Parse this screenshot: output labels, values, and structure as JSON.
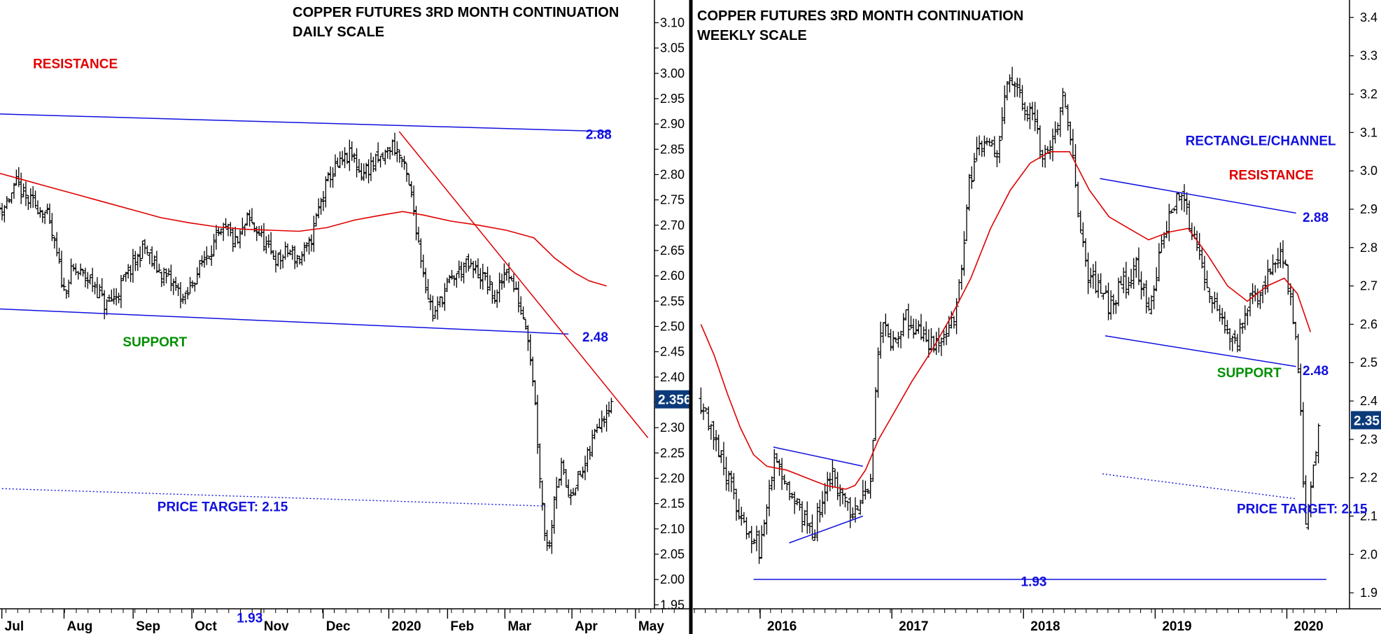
{
  "colors": {
    "bar": "#000000",
    "ma": "#e00000",
    "trendline": "#1010e0",
    "resistance_label": "#e00000",
    "support_label": "#009000",
    "annotation_blue": "#1010e0",
    "current_price_bg": "#0a3a7a",
    "current_price_text": "#ffffff"
  },
  "chart_data": [
    {
      "type": "ohlc",
      "title": "COPPER FUTURES 3RD MONTH CONTINUATION",
      "subtitle": "DAILY SCALE",
      "xlabel": "",
      "ylabel": "",
      "ylim": [
        1.92,
        3.12
      ],
      "y_ticks": [
        "3.10",
        "3.05",
        "3.00",
        "2.95",
        "2.90",
        "2.85",
        "2.80",
        "2.75",
        "2.70",
        "2.65",
        "2.60",
        "2.55",
        "2.50",
        "2.45",
        "2.40",
        "2.35",
        "2.30",
        "2.25",
        "2.20",
        "2.15",
        "2.10",
        "2.05",
        "2.00",
        "1.95"
      ],
      "x_ticks": [
        "Jul",
        "Aug",
        "Sep",
        "Oct",
        "Nov",
        "Dec",
        "2020",
        "Feb",
        "Mar",
        "Apr",
        "May"
      ],
      "current_price": "2.356",
      "close_path": [
        {
          "x": 0.0,
          "y": 2.73
        },
        {
          "x": 0.15,
          "y": 2.74
        },
        {
          "x": 0.32,
          "y": 2.78
        },
        {
          "x": 0.45,
          "y": 2.75
        },
        {
          "x": 0.6,
          "y": 2.74
        },
        {
          "x": 0.75,
          "y": 2.72
        },
        {
          "x": 0.88,
          "y": 2.65
        },
        {
          "x": 1.0,
          "y": 2.57
        },
        {
          "x": 1.12,
          "y": 2.61
        },
        {
          "x": 1.3,
          "y": 2.6
        },
        {
          "x": 1.45,
          "y": 2.58
        },
        {
          "x": 1.6,
          "y": 2.54
        },
        {
          "x": 1.75,
          "y": 2.56
        },
        {
          "x": 1.9,
          "y": 2.6
        },
        {
          "x": 2.05,
          "y": 2.63
        },
        {
          "x": 2.15,
          "y": 2.66
        },
        {
          "x": 2.3,
          "y": 2.62
        },
        {
          "x": 2.45,
          "y": 2.6
        },
        {
          "x": 2.6,
          "y": 2.58
        },
        {
          "x": 2.75,
          "y": 2.55
        },
        {
          "x": 2.9,
          "y": 2.6
        },
        {
          "x": 3.05,
          "y": 2.64
        },
        {
          "x": 3.2,
          "y": 2.67
        },
        {
          "x": 3.35,
          "y": 2.69
        },
        {
          "x": 3.5,
          "y": 2.66
        },
        {
          "x": 3.65,
          "y": 2.71
        },
        {
          "x": 3.8,
          "y": 2.69
        },
        {
          "x": 3.95,
          "y": 2.65
        },
        {
          "x": 4.1,
          "y": 2.63
        },
        {
          "x": 4.25,
          "y": 2.65
        },
        {
          "x": 4.4,
          "y": 2.63
        },
        {
          "x": 4.55,
          "y": 2.66
        },
        {
          "x": 4.7,
          "y": 2.74
        },
        {
          "x": 4.85,
          "y": 2.8
        },
        {
          "x": 5.0,
          "y": 2.82
        },
        {
          "x": 5.15,
          "y": 2.84
        },
        {
          "x": 5.3,
          "y": 2.8
        },
        {
          "x": 5.45,
          "y": 2.82
        },
        {
          "x": 5.6,
          "y": 2.83
        },
        {
          "x": 5.75,
          "y": 2.86
        },
        {
          "x": 5.85,
          "y": 2.84
        },
        {
          "x": 5.95,
          "y": 2.8
        },
        {
          "x": 6.05,
          "y": 2.74
        },
        {
          "x": 6.15,
          "y": 2.65
        },
        {
          "x": 6.25,
          "y": 2.57
        },
        {
          "x": 6.35,
          "y": 2.52
        },
        {
          "x": 6.5,
          "y": 2.57
        },
        {
          "x": 6.65,
          "y": 2.6
        },
        {
          "x": 6.8,
          "y": 2.62
        },
        {
          "x": 6.95,
          "y": 2.61
        },
        {
          "x": 7.1,
          "y": 2.59
        },
        {
          "x": 7.25,
          "y": 2.55
        },
        {
          "x": 7.4,
          "y": 2.62
        },
        {
          "x": 7.55,
          "y": 2.56
        },
        {
          "x": 7.7,
          "y": 2.5
        },
        {
          "x": 7.8,
          "y": 2.38
        },
        {
          "x": 7.88,
          "y": 2.22
        },
        {
          "x": 7.95,
          "y": 2.1
        },
        {
          "x": 8.02,
          "y": 2.06
        },
        {
          "x": 8.1,
          "y": 2.18
        },
        {
          "x": 8.2,
          "y": 2.22
        },
        {
          "x": 8.3,
          "y": 2.17
        },
        {
          "x": 8.4,
          "y": 2.19
        },
        {
          "x": 8.5,
          "y": 2.21
        },
        {
          "x": 8.6,
          "y": 2.25
        },
        {
          "x": 8.72,
          "y": 2.31
        },
        {
          "x": 8.82,
          "y": 2.33
        },
        {
          "x": 8.92,
          "y": 2.356
        }
      ],
      "moving_average": [
        {
          "x": 0.0,
          "y": 2.805
        },
        {
          "x": 0.4,
          "y": 2.79
        },
        {
          "x": 0.8,
          "y": 2.775
        },
        {
          "x": 1.2,
          "y": 2.76
        },
        {
          "x": 1.6,
          "y": 2.745
        },
        {
          "x": 2.0,
          "y": 2.73
        },
        {
          "x": 2.4,
          "y": 2.715
        },
        {
          "x": 2.8,
          "y": 2.705
        },
        {
          "x": 3.2,
          "y": 2.697
        },
        {
          "x": 3.6,
          "y": 2.692
        },
        {
          "x": 4.0,
          "y": 2.69
        },
        {
          "x": 4.4,
          "y": 2.688
        },
        {
          "x": 4.8,
          "y": 2.695
        },
        {
          "x": 5.2,
          "y": 2.71
        },
        {
          "x": 5.6,
          "y": 2.72
        },
        {
          "x": 5.9,
          "y": 2.727
        },
        {
          "x": 6.2,
          "y": 2.72
        },
        {
          "x": 6.6,
          "y": 2.708
        },
        {
          "x": 7.0,
          "y": 2.7
        },
        {
          "x": 7.4,
          "y": 2.69
        },
        {
          "x": 7.8,
          "y": 2.675
        },
        {
          "x": 8.1,
          "y": 2.635
        },
        {
          "x": 8.4,
          "y": 2.605
        },
        {
          "x": 8.6,
          "y": 2.59
        },
        {
          "x": 8.85,
          "y": 2.58
        }
      ],
      "lines": [
        {
          "name": "resistance",
          "style": "solid",
          "color": "trendline",
          "x1": 0.0,
          "y1": 2.92,
          "x2": 8.9,
          "y2": 2.885
        },
        {
          "name": "support",
          "style": "solid",
          "color": "trendline",
          "x1": 0.0,
          "y1": 2.535,
          "x2": 8.3,
          "y2": 2.485
        },
        {
          "name": "target",
          "style": "dotted",
          "color": "trendline",
          "x1": 0.0,
          "y1": 2.18,
          "x2": 8.0,
          "y2": 2.145
        },
        {
          "name": "low",
          "style": "solid",
          "color": "trendline",
          "x1": 0.0,
          "y1": 1.93,
          "x2": 9.6,
          "y2": 1.93
        },
        {
          "name": "downtrend",
          "style": "solid",
          "color": "ma",
          "x1": 5.85,
          "y1": 2.885,
          "x2": 9.45,
          "y2": 2.28
        }
      ],
      "annotations": [
        {
          "text": "RESISTANCE",
          "color": "resistance_label",
          "x": 0.55,
          "y": 3.02
        },
        {
          "text": "SUPPORT",
          "color": "support_label",
          "x": 1.85,
          "y": 2.47
        },
        {
          "text": "PRICE TARGET: 2.15",
          "color": "annotation_blue",
          "x": 2.35,
          "y": 2.145
        },
        {
          "text": "2.88",
          "color": "annotation_blue",
          "x": 8.55,
          "y": 2.88
        },
        {
          "text": "2.48",
          "color": "annotation_blue",
          "x": 8.5,
          "y": 2.48
        },
        {
          "text": "1.93",
          "color": "annotation_blue",
          "x": 3.5,
          "y": 1.925
        }
      ]
    },
    {
      "type": "ohlc",
      "title": "COPPER FUTURES 3RD MONTH CONTINUATION",
      "subtitle": "WEEKLY SCALE",
      "xlabel": "",
      "ylabel": "",
      "ylim": [
        1.82,
        3.46
      ],
      "y_ticks": [
        "3.4",
        "3.3",
        "3.2",
        "3.1",
        "3.0",
        "2.9",
        "2.8",
        "2.7",
        "2.6",
        "2.5",
        "2.4",
        "2.3",
        "2.2",
        "2.1",
        "2.0",
        "1.9"
      ],
      "x_ticks": [
        "2016",
        "2017",
        "2018",
        "2019",
        "2020"
      ],
      "current_price": "2.35",
      "close_path": [
        {
          "x": 2015.55,
          "y": 2.4
        },
        {
          "x": 2015.65,
          "y": 2.32
        },
        {
          "x": 2015.75,
          "y": 2.2
        },
        {
          "x": 2015.85,
          "y": 2.1
        },
        {
          "x": 2015.95,
          "y": 2.05
        },
        {
          "x": 2016.0,
          "y": 2.0
        },
        {
          "x": 2016.06,
          "y": 2.15
        },
        {
          "x": 2016.1,
          "y": 2.25
        },
        {
          "x": 2016.18,
          "y": 2.2
        },
        {
          "x": 2016.25,
          "y": 2.15
        },
        {
          "x": 2016.32,
          "y": 2.1
        },
        {
          "x": 2016.4,
          "y": 2.05
        },
        {
          "x": 2016.48,
          "y": 2.15
        },
        {
          "x": 2016.55,
          "y": 2.2
        },
        {
          "x": 2016.62,
          "y": 2.15
        },
        {
          "x": 2016.7,
          "y": 2.1
        },
        {
          "x": 2016.78,
          "y": 2.15
        },
        {
          "x": 2016.84,
          "y": 2.2
        },
        {
          "x": 2016.88,
          "y": 2.45
        },
        {
          "x": 2016.92,
          "y": 2.62
        },
        {
          "x": 2017.0,
          "y": 2.55
        },
        {
          "x": 2017.1,
          "y": 2.62
        },
        {
          "x": 2017.2,
          "y": 2.58
        },
        {
          "x": 2017.3,
          "y": 2.55
        },
        {
          "x": 2017.4,
          "y": 2.55
        },
        {
          "x": 2017.5,
          "y": 2.65
        },
        {
          "x": 2017.58,
          "y": 2.95
        },
        {
          "x": 2017.65,
          "y": 3.05
        },
        {
          "x": 2017.72,
          "y": 3.1
        },
        {
          "x": 2017.8,
          "y": 3.05
        },
        {
          "x": 2017.88,
          "y": 3.25
        },
        {
          "x": 2017.95,
          "y": 3.2
        },
        {
          "x": 2018.05,
          "y": 3.15
        },
        {
          "x": 2018.15,
          "y": 3.05
        },
        {
          "x": 2018.22,
          "y": 3.08
        },
        {
          "x": 2018.3,
          "y": 3.2
        },
        {
          "x": 2018.4,
          "y": 2.95
        },
        {
          "x": 2018.48,
          "y": 2.72
        },
        {
          "x": 2018.55,
          "y": 2.7
        },
        {
          "x": 2018.65,
          "y": 2.65
        },
        {
          "x": 2018.75,
          "y": 2.7
        },
        {
          "x": 2018.85,
          "y": 2.75
        },
        {
          "x": 2018.95,
          "y": 2.65
        },
        {
          "x": 2019.05,
          "y": 2.8
        },
        {
          "x": 2019.12,
          "y": 2.9
        },
        {
          "x": 2019.2,
          "y": 2.93
        },
        {
          "x": 2019.28,
          "y": 2.85
        },
        {
          "x": 2019.35,
          "y": 2.75
        },
        {
          "x": 2019.45,
          "y": 2.65
        },
        {
          "x": 2019.55,
          "y": 2.58
        },
        {
          "x": 2019.62,
          "y": 2.55
        },
        {
          "x": 2019.7,
          "y": 2.65
        },
        {
          "x": 2019.8,
          "y": 2.68
        },
        {
          "x": 2019.88,
          "y": 2.75
        },
        {
          "x": 2019.95,
          "y": 2.8
        },
        {
          "x": 2020.0,
          "y": 2.72
        },
        {
          "x": 2020.05,
          "y": 2.6
        },
        {
          "x": 2020.1,
          "y": 2.45
        },
        {
          "x": 2020.14,
          "y": 2.05
        },
        {
          "x": 2020.18,
          "y": 2.15
        },
        {
          "x": 2020.24,
          "y": 2.35
        }
      ],
      "moving_average": [
        {
          "x": 2015.55,
          "y": 2.6
        },
        {
          "x": 2015.65,
          "y": 2.52
        },
        {
          "x": 2015.75,
          "y": 2.42
        },
        {
          "x": 2015.85,
          "y": 2.33
        },
        {
          "x": 2015.95,
          "y": 2.26
        },
        {
          "x": 2016.05,
          "y": 2.23
        },
        {
          "x": 2016.2,
          "y": 2.22
        },
        {
          "x": 2016.35,
          "y": 2.2
        },
        {
          "x": 2016.5,
          "y": 2.18
        },
        {
          "x": 2016.65,
          "y": 2.17
        },
        {
          "x": 2016.72,
          "y": 2.18
        },
        {
          "x": 2016.8,
          "y": 2.22
        },
        {
          "x": 2016.9,
          "y": 2.3
        },
        {
          "x": 2017.0,
          "y": 2.36
        },
        {
          "x": 2017.15,
          "y": 2.45
        },
        {
          "x": 2017.3,
          "y": 2.53
        },
        {
          "x": 2017.45,
          "y": 2.62
        },
        {
          "x": 2017.6,
          "y": 2.72
        },
        {
          "x": 2017.75,
          "y": 2.85
        },
        {
          "x": 2017.9,
          "y": 2.95
        },
        {
          "x": 2018.05,
          "y": 3.02
        },
        {
          "x": 2018.2,
          "y": 3.05
        },
        {
          "x": 2018.35,
          "y": 3.05
        },
        {
          "x": 2018.5,
          "y": 2.95
        },
        {
          "x": 2018.65,
          "y": 2.88
        },
        {
          "x": 2018.8,
          "y": 2.85
        },
        {
          "x": 2018.95,
          "y": 2.82
        },
        {
          "x": 2019.1,
          "y": 2.84
        },
        {
          "x": 2019.25,
          "y": 2.85
        },
        {
          "x": 2019.4,
          "y": 2.78
        },
        {
          "x": 2019.55,
          "y": 2.7
        },
        {
          "x": 2019.7,
          "y": 2.66
        },
        {
          "x": 2019.85,
          "y": 2.7
        },
        {
          "x": 2019.98,
          "y": 2.72
        },
        {
          "x": 2020.08,
          "y": 2.68
        },
        {
          "x": 2020.18,
          "y": 2.58
        }
      ],
      "lines": [
        {
          "name": "rect-top",
          "style": "solid",
          "color": "trendline",
          "x1": 2018.58,
          "y1": 2.98,
          "x2": 2020.07,
          "y2": 2.89
        },
        {
          "name": "rect-bottom",
          "style": "solid",
          "color": "trendline",
          "x1": 2018.62,
          "y1": 2.57,
          "x2": 2020.07,
          "y2": 2.49
        },
        {
          "name": "triangle-top",
          "style": "solid",
          "color": "trendline",
          "x1": 2016.1,
          "y1": 2.28,
          "x2": 2016.78,
          "y2": 2.23
        },
        {
          "name": "triangle-bottom",
          "style": "solid",
          "color": "trendline",
          "x1": 2016.22,
          "y1": 2.03,
          "x2": 2016.78,
          "y2": 2.1
        },
        {
          "name": "target",
          "style": "dotted",
          "color": "trendline",
          "x1": 2018.6,
          "y1": 2.21,
          "x2": 2020.07,
          "y2": 2.145
        },
        {
          "name": "low",
          "style": "solid",
          "color": "trendline",
          "x1": 2015.95,
          "y1": 1.935,
          "x2": 2020.3,
          "y2": 1.935
        }
      ],
      "annotations": [
        {
          "text": "RECTANGLE/CHANNEL",
          "color": "annotation_blue",
          "x": 2019.23,
          "y": 3.08
        },
        {
          "text": "RESISTANCE",
          "color": "resistance_label",
          "x": 2019.56,
          "y": 2.99
        },
        {
          "text": "2.88",
          "color": "annotation_blue",
          "x": 2020.12,
          "y": 2.88
        },
        {
          "text": "SUPPORT",
          "color": "support_label",
          "x": 2019.47,
          "y": 2.475
        },
        {
          "text": "2.48",
          "color": "annotation_blue",
          "x": 2020.12,
          "y": 2.48
        },
        {
          "text": "PRICE TARGET: 2.15",
          "color": "annotation_blue",
          "x": 2019.62,
          "y": 2.12
        },
        {
          "text": "1.93",
          "color": "annotation_blue",
          "x": 2017.98,
          "y": 1.93
        }
      ]
    }
  ]
}
